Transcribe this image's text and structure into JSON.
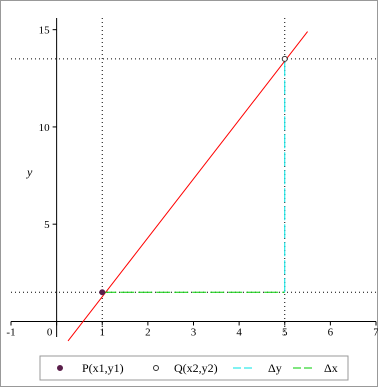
{
  "chart_data": {
    "type": "line",
    "title": "",
    "xlabel": "",
    "ylabel": "y",
    "xlim": [
      -1,
      7
    ],
    "ylim": [
      -0.8,
      15.6
    ],
    "x_ticks": [
      -1,
      0,
      1,
      2,
      3,
      4,
      5,
      6,
      7
    ],
    "y_ticks": [
      5,
      10,
      15
    ],
    "grid": false,
    "line": {
      "color": "#ff0000",
      "x": [
        0.25,
        5.5
      ],
      "y": [
        -1,
        14.9
      ]
    },
    "points": [
      {
        "name": "P(x1,y1)",
        "x": 1,
        "y": 1.5,
        "style": "filled"
      },
      {
        "name": "Q(x2,y2)",
        "x": 5,
        "y": 13.5,
        "style": "hollow"
      }
    ],
    "delta_y": {
      "name": "Δy",
      "x": 5,
      "y": [
        1.5,
        13.5
      ],
      "color": "#00e6e6"
    },
    "delta_x": {
      "name": "Δx",
      "y": 1.5,
      "x": [
        1,
        5
      ],
      "color": "#00cc00"
    },
    "guides_dotted": true,
    "legend": {
      "placement": "bottom",
      "items": [
        {
          "label": "P(x1,y1)",
          "symbol": "filled-dot",
          "color": "#5a1e4a"
        },
        {
          "label": "Q(x2,y2)",
          "symbol": "hollow-dot",
          "color": "#333333"
        },
        {
          "label": "Δy",
          "symbol": "dash-line",
          "color": "#00e6e6"
        },
        {
          "label": "Δx",
          "symbol": "dash-line",
          "color": "#00cc00"
        }
      ]
    }
  }
}
